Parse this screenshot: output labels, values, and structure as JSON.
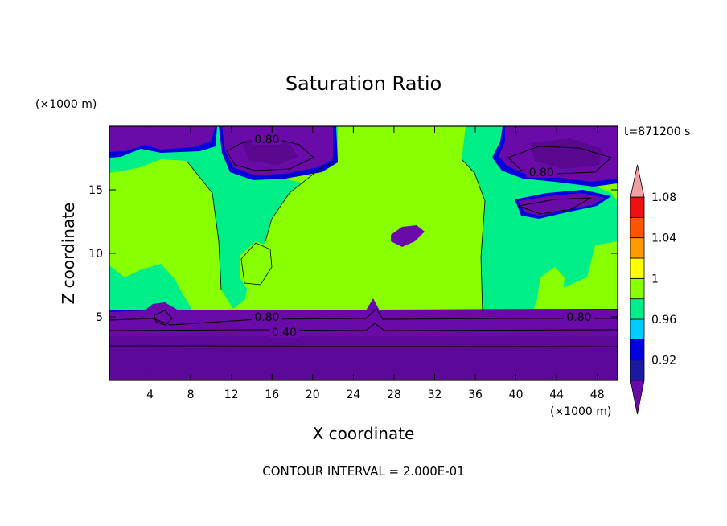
{
  "chart_data": {
    "type": "heatmap",
    "title": "Saturation Ratio",
    "xlabel": "X coordinate",
    "ylabel": "Z coordinate",
    "x_unit": "(×1000 m)",
    "y_unit": "(×1000 m)",
    "time_label": "t=871200 s",
    "footer": "CONTOUR INTERVAL = 2.000E-01",
    "xlim": [
      0,
      50
    ],
    "ylim": [
      0,
      20
    ],
    "x_ticks": [
      4,
      8,
      12,
      16,
      20,
      24,
      28,
      32,
      36,
      40,
      44,
      48
    ],
    "y_ticks": [
      5,
      10,
      15
    ],
    "grid": false,
    "colorbar": {
      "levels": [
        0.92,
        0.96,
        1,
        1.04,
        1.08
      ],
      "colors": [
        "#6a0aa8",
        "#1a1aa0",
        "#0000dd",
        "#00ccff",
        "#00ee88",
        "#88ff00",
        "#ffff00",
        "#ff9900",
        "#ff5500",
        "#ee1111",
        "#f0a0a0"
      ]
    },
    "contour_labels": [
      {
        "text": "0.80",
        "x": 15.5,
        "y": 19.0
      },
      {
        "text": "0.80",
        "x": 42.5,
        "y": 16.4
      },
      {
        "text": "0.80",
        "x": 15.5,
        "y": 5.0
      },
      {
        "text": "0.40",
        "x": 17.2,
        "y": 3.8
      },
      {
        "text": "0.80",
        "x": 46.2,
        "y": 5.0
      }
    ]
  }
}
